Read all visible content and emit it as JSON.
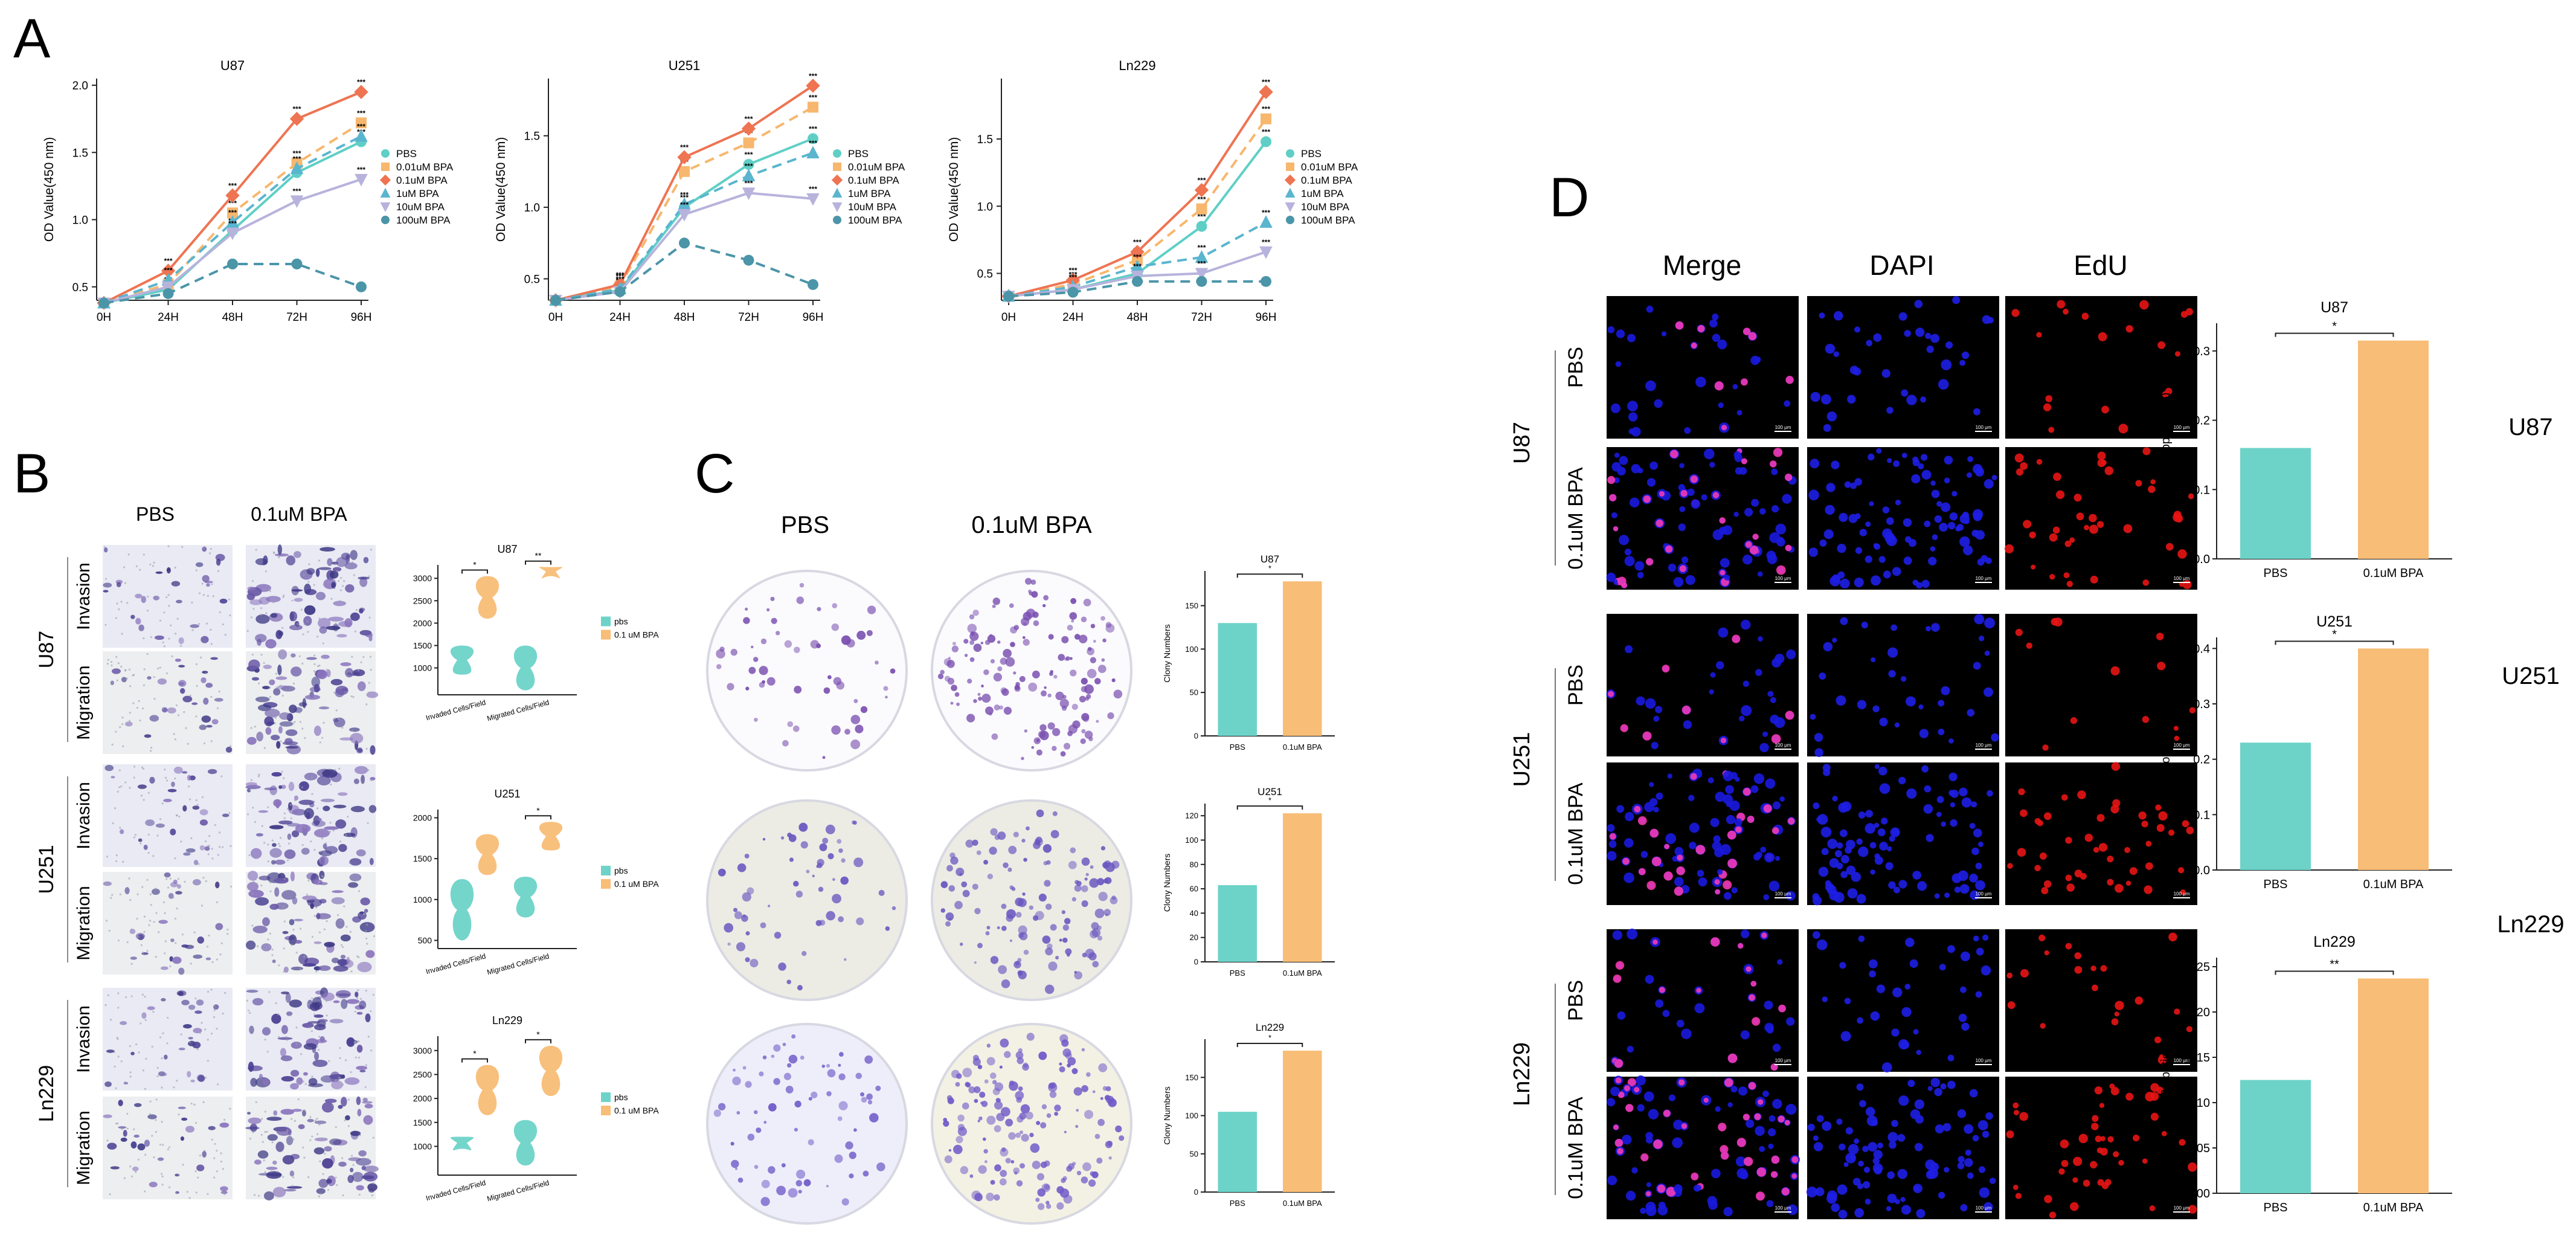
{
  "panels": {
    "A": "A",
    "B": "B",
    "C": "C",
    "D": "D"
  },
  "colors": {
    "PBS": "#5fcfc6",
    "0.01uM BPA": "#f7b76e",
    "0.1uM BPA": "#ee7452",
    "1uM BPA": "#5ab5cf",
    "10uM BPA": "#b7b3dc",
    "100uM BPA": "#4b95a8",
    "bar_pbs": "#6dd3c8",
    "bar_bpa": "#f8bd76"
  },
  "panel_a": {
    "x": [
      "0H",
      "24H",
      "48H",
      "72H",
      "96H"
    ],
    "ylabel": "OD Value(450 nm)",
    "legend": [
      "PBS",
      "0.01uM BPA",
      "0.1uM BPA",
      "1uM BPA",
      "10uM BPA",
      "100uM BPA"
    ],
    "charts": [
      {
        "title": "U87",
        "ylim": [
          0.4,
          2.05
        ],
        "ticks": [
          0.5,
          1.0,
          1.5,
          2.0
        ],
        "tick_labels": [
          "0.5",
          "1.0",
          "1.5",
          "2.0"
        ],
        "series": [
          {
            "name": "PBS",
            "values": [
              0.38,
              0.48,
              0.92,
              1.35,
              1.58
            ]
          },
          {
            "name": "0.01uM BPA",
            "values": [
              0.38,
              0.52,
              1.05,
              1.42,
              1.72
            ]
          },
          {
            "name": "0.1uM BPA",
            "values": [
              0.38,
              0.62,
              1.18,
              1.75,
              1.95
            ]
          },
          {
            "name": "1uM BPA",
            "values": [
              0.38,
              0.55,
              0.98,
              1.38,
              1.62
            ]
          },
          {
            "name": "10uM BPA",
            "values": [
              0.38,
              0.5,
              0.9,
              1.14,
              1.3
            ]
          },
          {
            "name": "100uM BPA",
            "values": [
              0.38,
              0.45,
              0.67,
              0.67,
              0.5
            ]
          }
        ]
      },
      {
        "title": "U251",
        "ylim": [
          0.35,
          1.9
        ],
        "ticks": [
          0.5,
          1.0,
          1.5
        ],
        "tick_labels": [
          "0.5",
          "1.0",
          "1.5"
        ],
        "series": [
          {
            "name": "PBS",
            "values": [
              0.35,
              0.42,
              1.0,
              1.3,
              1.48
            ]
          },
          {
            "name": "0.01uM BPA",
            "values": [
              0.35,
              0.45,
              1.25,
              1.45,
              1.7
            ]
          },
          {
            "name": "0.1uM BPA",
            "values": [
              0.35,
              0.46,
              1.35,
              1.55,
              1.85
            ]
          },
          {
            "name": "1uM BPA",
            "values": [
              0.35,
              0.43,
              1.02,
              1.22,
              1.38
            ]
          },
          {
            "name": "10uM BPA",
            "values": [
              0.35,
              0.41,
              0.95,
              1.1,
              1.06
            ]
          },
          {
            "name": "100uM BPA",
            "values": [
              0.35,
              0.41,
              0.75,
              0.63,
              0.46
            ]
          }
        ]
      },
      {
        "title": "Ln229",
        "ylim": [
          0.3,
          1.95
        ],
        "ticks": [
          0.5,
          1.0,
          1.5
        ],
        "tick_labels": [
          "0.5",
          "1.0",
          "1.5"
        ],
        "series": [
          {
            "name": "PBS",
            "values": [
              0.33,
              0.38,
              0.5,
              0.85,
              1.48
            ]
          },
          {
            "name": "0.01uM BPA",
            "values": [
              0.33,
              0.42,
              0.6,
              0.98,
              1.65
            ]
          },
          {
            "name": "0.1uM BPA",
            "values": [
              0.33,
              0.45,
              0.66,
              1.12,
              1.85
            ]
          },
          {
            "name": "1uM BPA",
            "values": [
              0.33,
              0.4,
              0.55,
              0.62,
              0.88
            ]
          },
          {
            "name": "10uM BPA",
            "values": [
              0.33,
              0.38,
              0.48,
              0.5,
              0.66
            ]
          },
          {
            "name": "100uM BPA",
            "values": [
              0.33,
              0.36,
              0.44,
              0.44,
              0.44
            ]
          }
        ]
      }
    ]
  },
  "panel_b": {
    "col_labels": [
      "PBS",
      "0.1uM BPA"
    ],
    "row_groups": [
      {
        "cell": "U87",
        "rows": [
          "Invasion",
          "Migration"
        ]
      },
      {
        "cell": "U251",
        "rows": [
          "Invasion",
          "Migration"
        ]
      },
      {
        "cell": "Ln229",
        "rows": [
          "Invasion",
          "Migration"
        ]
      }
    ],
    "x_categories": [
      "Invaded Cells/Field",
      "Migrated Cells/Field"
    ],
    "legend": [
      "pbs",
      "0.1 uM BPA"
    ],
    "charts": [
      {
        "title": "U87",
        "ylim": [
          400,
          3300
        ],
        "ticks": [
          1000,
          1500,
          2000,
          2500,
          3000
        ],
        "tick_labels": [
          "1000",
          "1500",
          "2000",
          "2500",
          "3000"
        ],
        "sig": [
          "*",
          "**"
        ],
        "groups": [
          {
            "pbs": [
              850,
              1500
            ],
            "bpa": [
              2100,
              3050
            ]
          },
          {
            "pbs": [
              500,
              1500
            ],
            "bpa": [
              3050,
              3250
            ]
          }
        ]
      },
      {
        "title": "U251",
        "ylim": [
          400,
          2100
        ],
        "ticks": [
          500,
          1000,
          1500,
          2000
        ],
        "tick_labels": [
          "500",
          "1000",
          "1500",
          "2000"
        ],
        "sig": [
          "",
          "*"
        ],
        "groups": [
          {
            "pbs": [
              500,
              1250
            ],
            "bpa": [
              1300,
              1800
            ]
          },
          {
            "pbs": [
              780,
              1280
            ],
            "bpa": [
              1600,
              1950
            ]
          }
        ]
      },
      {
        "title": "Ln229",
        "ylim": [
          400,
          3300
        ],
        "ticks": [
          1000,
          1500,
          2000,
          2500,
          3000
        ],
        "tick_labels": [
          "1000",
          "1500",
          "2000",
          "2500",
          "3000"
        ],
        "sig": [
          "*",
          "*"
        ],
        "groups": [
          {
            "pbs": [
              950,
              1200
            ],
            "bpa": [
              1650,
              2700
            ]
          },
          {
            "pbs": [
              600,
              1550
            ],
            "bpa": [
              2050,
              3100
            ]
          }
        ]
      }
    ]
  },
  "panel_c": {
    "col_labels": [
      "PBS",
      "0.1uM BPA"
    ],
    "ylabel": "Clony Numbers",
    "categories": [
      "PBS",
      "0.1uM BPA"
    ],
    "charts": [
      {
        "title": "U87",
        "ylim": [
          0,
          190
        ],
        "ticks": [
          0,
          50,
          100,
          150
        ],
        "tick_labels": [
          "0",
          "50",
          "100",
          "150"
        ],
        "values": [
          130,
          178
        ],
        "sig": "*"
      },
      {
        "title": "U251",
        "ylim": [
          0,
          130
        ],
        "ticks": [
          0,
          20,
          40,
          60,
          80,
          100,
          120
        ],
        "tick_labels": [
          "0",
          "20",
          "40",
          "60",
          "80",
          "100",
          "120"
        ],
        "values": [
          63,
          122
        ],
        "sig": "*"
      },
      {
        "title": "Ln229",
        "ylim": [
          0,
          200
        ],
        "ticks": [
          0,
          50,
          100,
          150
        ],
        "tick_labels": [
          "0",
          "50",
          "100",
          "150"
        ],
        "values": [
          105,
          185
        ],
        "sig": "*"
      }
    ]
  },
  "panel_d": {
    "col_labels": [
      "Merge",
      "DAPI",
      "EdU"
    ],
    "row_groups": [
      {
        "cell": "U87",
        "rows": [
          "PBS",
          "0.1uM BPA"
        ]
      },
      {
        "cell": "U251",
        "rows": [
          "PBS",
          "0.1uM BPA"
        ]
      },
      {
        "cell": "Ln229",
        "rows": [
          "PBS",
          "0.1uM BPA"
        ]
      }
    ],
    "scale_bar": "100 μm",
    "ylabel": "EdU Propotion(%)",
    "categories": [
      "PBS",
      "0.1uM BPA"
    ],
    "charts": [
      {
        "title": "U87",
        "side": "U87",
        "ylim": [
          0,
          0.34
        ],
        "ticks": [
          0.0,
          0.1,
          0.2,
          0.3
        ],
        "tick_labels": [
          "0.0",
          "0.1",
          "0.2",
          "0.3"
        ],
        "values": [
          0.16,
          0.315
        ],
        "sig": "*"
      },
      {
        "title": "U251",
        "side": "U251",
        "ylim": [
          0,
          0.42
        ],
        "ticks": [
          0.0,
          0.1,
          0.2,
          0.3,
          0.4
        ],
        "tick_labels": [
          "0.0",
          "0.1",
          "0.2",
          "0.3",
          "0.4"
        ],
        "values": [
          0.23,
          0.4
        ],
        "sig": "*"
      },
      {
        "title": "Ln229",
        "side": "Ln229",
        "ylim": [
          0,
          0.26
        ],
        "ticks": [
          0.0,
          0.05,
          0.1,
          0.15,
          0.2,
          0.25
        ],
        "tick_labels": [
          "0.00",
          "0.05",
          "0.10",
          "0.15",
          "0.20",
          "0.25"
        ],
        "values": [
          0.125,
          0.237
        ],
        "sig": "**"
      }
    ]
  },
  "chart_data": [
    {
      "type": "line",
      "title": "U87",
      "x": [
        "0H",
        "24H",
        "48H",
        "72H",
        "96H"
      ],
      "ylabel": "OD Value(450 nm)",
      "series": [
        {
          "name": "PBS",
          "values": [
            0.38,
            0.48,
            0.92,
            1.35,
            1.58
          ]
        },
        {
          "name": "0.01uM BPA",
          "values": [
            0.38,
            0.52,
            1.05,
            1.42,
            1.72
          ]
        },
        {
          "name": "0.1uM BPA",
          "values": [
            0.38,
            0.62,
            1.18,
            1.75,
            1.95
          ]
        },
        {
          "name": "1uM BPA",
          "values": [
            0.38,
            0.55,
            0.98,
            1.38,
            1.62
          ]
        },
        {
          "name": "10uM BPA",
          "values": [
            0.38,
            0.5,
            0.9,
            1.14,
            1.3
          ]
        },
        {
          "name": "100uM BPA",
          "values": [
            0.38,
            0.45,
            0.67,
            0.67,
            0.5
          ]
        }
      ]
    },
    {
      "type": "line",
      "title": "U251",
      "x": [
        "0H",
        "24H",
        "48H",
        "72H",
        "96H"
      ],
      "ylabel": "OD Value(450 nm)",
      "series": [
        {
          "name": "PBS",
          "values": [
            0.35,
            0.42,
            1.0,
            1.3,
            1.48
          ]
        },
        {
          "name": "0.01uM BPA",
          "values": [
            0.35,
            0.45,
            1.25,
            1.45,
            1.7
          ]
        },
        {
          "name": "0.1uM BPA",
          "values": [
            0.35,
            0.46,
            1.35,
            1.55,
            1.85
          ]
        },
        {
          "name": "1uM BPA",
          "values": [
            0.35,
            0.43,
            1.02,
            1.22,
            1.38
          ]
        },
        {
          "name": "10uM BPA",
          "values": [
            0.35,
            0.41,
            0.95,
            1.1,
            1.06
          ]
        },
        {
          "name": "100uM BPA",
          "values": [
            0.35,
            0.41,
            0.75,
            0.63,
            0.46
          ]
        }
      ]
    },
    {
      "type": "line",
      "title": "Ln229",
      "x": [
        "0H",
        "24H",
        "48H",
        "72H",
        "96H"
      ],
      "ylabel": "OD Value(450 nm)",
      "series": [
        {
          "name": "PBS",
          "values": [
            0.33,
            0.38,
            0.5,
            0.85,
            1.48
          ]
        },
        {
          "name": "0.01uM BPA",
          "values": [
            0.33,
            0.42,
            0.6,
            0.98,
            1.65
          ]
        },
        {
          "name": "0.1uM BPA",
          "values": [
            0.33,
            0.45,
            0.66,
            1.12,
            1.85
          ]
        },
        {
          "name": "1uM BPA",
          "values": [
            0.33,
            0.4,
            0.55,
            0.62,
            0.88
          ]
        },
        {
          "name": "10uM BPA",
          "values": [
            0.33,
            0.38,
            0.48,
            0.5,
            0.66
          ]
        },
        {
          "name": "100uM BPA",
          "values": [
            0.33,
            0.36,
            0.44,
            0.44,
            0.44
          ]
        }
      ]
    },
    {
      "type": "bar",
      "title": "U87",
      "categories": [
        "PBS",
        "0.1uM BPA"
      ],
      "values": [
        130,
        178
      ],
      "ylabel": "Clony Numbers"
    },
    {
      "type": "bar",
      "title": "U251",
      "categories": [
        "PBS",
        "0.1uM BPA"
      ],
      "values": [
        63,
        122
      ],
      "ylabel": "Clony Numbers"
    },
    {
      "type": "bar",
      "title": "Ln229",
      "categories": [
        "PBS",
        "0.1uM BPA"
      ],
      "values": [
        105,
        185
      ],
      "ylabel": "Clony Numbers"
    },
    {
      "type": "bar",
      "title": "U87",
      "categories": [
        "PBS",
        "0.1uM BPA"
      ],
      "values": [
        0.16,
        0.315
      ],
      "ylabel": "EdU Propotion(%)"
    },
    {
      "type": "bar",
      "title": "U251",
      "categories": [
        "PBS",
        "0.1uM BPA"
      ],
      "values": [
        0.23,
        0.4
      ],
      "ylabel": "EdU Propotion(%)"
    },
    {
      "type": "bar",
      "title": "Ln229",
      "categories": [
        "PBS",
        "0.1uM BPA"
      ],
      "values": [
        0.125,
        0.237
      ],
      "ylabel": "EdU Propotion(%)"
    }
  ]
}
